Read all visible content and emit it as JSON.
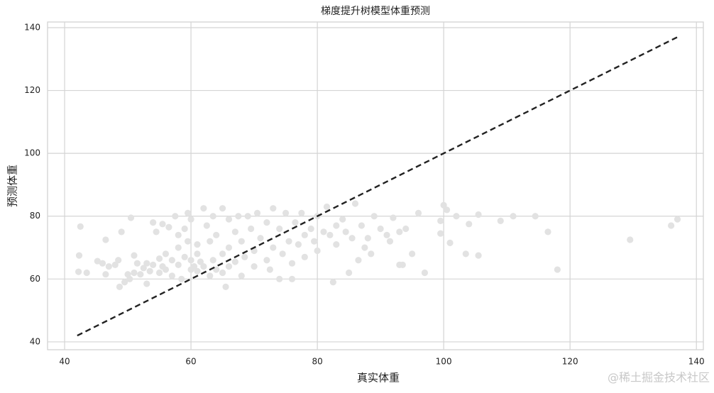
{
  "chart_data": {
    "type": "scatter",
    "title": "梯度提升树模型体重预测",
    "x_label": "真实体重",
    "y_label": "预测体重",
    "annotation": "@稀土掘金技术社区",
    "color": "#e2e2e2",
    "grid": true,
    "xlim": [
      37.3,
      141.1
    ],
    "ylim": [
      37.5,
      141.8
    ],
    "xticks": [
      40,
      60,
      80,
      100,
      120,
      140
    ],
    "yticks": [
      40,
      60,
      80,
      100,
      120,
      140
    ],
    "reference_line": {
      "x": [
        42,
        137
      ],
      "values": [
        42,
        137
      ],
      "color": "#222222",
      "dashed": true
    },
    "x": [
      42.2,
      42.3,
      42.5,
      43.5,
      45.2,
      46,
      46.5,
      46.5,
      47,
      48,
      48.5,
      48.7,
      49,
      49.5,
      50,
      50.3,
      50.5,
      51,
      51,
      51.5,
      52,
      52.5,
      53,
      53,
      53.5,
      54,
      54,
      54.5,
      55,
      55,
      55.5,
      55.5,
      56,
      56,
      56.5,
      57,
      57,
      57.5,
      58,
      58,
      58,
      58.5,
      59,
      59,
      59.5,
      59.5,
      60,
      60,
      60,
      60.5,
      61,
      61,
      61,
      61.5,
      62,
      62,
      62.5,
      63,
      63,
      63.5,
      63.5,
      64,
      64,
      65,
      65,
      65,
      65.5,
      66,
      66,
      66,
      67,
      67,
      67.5,
      68,
      68,
      68.5,
      69,
      69.5,
      70,
      70,
      70.5,
      71,
      72,
      72,
      72.5,
      73,
      73,
      74,
      74,
      74.5,
      75,
      75.5,
      76,
      76,
      76.5,
      77,
      77.5,
      78,
      78,
      79,
      79.5,
      80,
      80,
      81,
      81.5,
      82,
      82.5,
      83,
      83,
      84,
      84.5,
      85,
      85.5,
      86,
      86.5,
      87,
      87.5,
      88,
      88.5,
      89,
      90,
      91,
      91.5,
      92,
      93,
      93,
      93.5,
      94,
      95,
      96,
      97,
      99.5,
      99.5,
      100,
      100.5,
      101,
      102,
      103.5,
      104,
      105.5,
      105.5,
      109,
      111,
      114.5,
      116.5,
      118,
      129.5,
      136,
      137
    ],
    "values": [
      62.3,
      67.5,
      76.7,
      62,
      65.7,
      65,
      61.5,
      72.5,
      64,
      64.5,
      66,
      57.5,
      75,
      59,
      61.5,
      60,
      79.5,
      67.5,
      62,
      65,
      61.5,
      63.5,
      58.5,
      65,
      62.5,
      64.5,
      78,
      75,
      66.5,
      62,
      77.5,
      64,
      63,
      68,
      76.5,
      61,
      66,
      80,
      70,
      64.5,
      74,
      60,
      76,
      67,
      81,
      72,
      63,
      66,
      79,
      64,
      62.5,
      68,
      71,
      65.5,
      82.5,
      64,
      77,
      61,
      72,
      66,
      80,
      74,
      63,
      82.5,
      68,
      62,
      57.5,
      79,
      70,
      64,
      75,
      65.5,
      80,
      61,
      72,
      67,
      80,
      76,
      64,
      69,
      81,
      73,
      66,
      78,
      63,
      82.5,
      70,
      60,
      76,
      68,
      81,
      72,
      60,
      65,
      78,
      71,
      81,
      74,
      67,
      76,
      72,
      80,
      69,
      75,
      83,
      74,
      59,
      77,
      71,
      79,
      75,
      62,
      73,
      84,
      66,
      77,
      70,
      73,
      68,
      80,
      76,
      74,
      72,
      79.5,
      64.5,
      75,
      64.5,
      76,
      68,
      81,
      62,
      78.5,
      74.5,
      83.5,
      82,
      71.5,
      80,
      68,
      77.5,
      67.5,
      80.5,
      78.5,
      80,
      80,
      75,
      63,
      72.5,
      77,
      79
    ]
  }
}
